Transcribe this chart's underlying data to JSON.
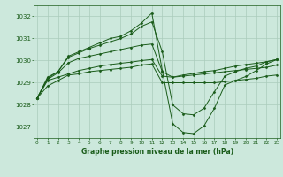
{
  "title": "Graphe pression niveau de la mer (hPa)",
  "bg_color": "#cce8dc",
  "grid_color": "#aaccbb",
  "line_color": "#1a5c1a",
  "xlim": [
    -0.3,
    23.3
  ],
  "ylim": [
    1026.5,
    1032.5
  ],
  "yticks": [
    1027,
    1028,
    1029,
    1030,
    1031,
    1032
  ],
  "xticks": [
    0,
    1,
    2,
    3,
    4,
    5,
    6,
    7,
    8,
    9,
    10,
    11,
    12,
    13,
    14,
    15,
    16,
    17,
    18,
    19,
    20,
    21,
    22,
    23
  ],
  "series": [
    [
      1028.3,
      1028.85,
      1029.1,
      1029.35,
      1029.4,
      1029.5,
      1029.55,
      1029.6,
      1029.65,
      1029.7,
      1029.8,
      1029.85,
      1029.0,
      1029.0,
      1029.0,
      1029.0,
      1029.0,
      1029.0,
      1029.05,
      1029.1,
      1029.15,
      1029.2,
      1029.3,
      1029.35
    ],
    [
      1028.3,
      1029.1,
      1029.25,
      1029.4,
      1029.55,
      1029.65,
      1029.75,
      1029.82,
      1029.88,
      1029.93,
      1030.0,
      1030.05,
      1029.3,
      1029.25,
      1029.3,
      1029.35,
      1029.4,
      1029.45,
      1029.5,
      1029.55,
      1029.6,
      1029.65,
      1029.7,
      1029.8
    ],
    [
      1028.3,
      1029.15,
      1029.45,
      1029.9,
      1030.1,
      1030.2,
      1030.3,
      1030.4,
      1030.5,
      1030.6,
      1030.7,
      1030.75,
      1029.5,
      1029.25,
      1029.35,
      1029.42,
      1029.5,
      1029.55,
      1029.65,
      1029.75,
      1029.82,
      1029.88,
      1029.95,
      1030.05
    ],
    [
      1028.3,
      1029.2,
      1029.5,
      1030.15,
      1030.35,
      1030.55,
      1030.7,
      1030.85,
      1031.0,
      1031.2,
      1031.55,
      1031.75,
      1030.4,
      1028.0,
      1027.6,
      1027.55,
      1027.85,
      1028.6,
      1029.3,
      1029.5,
      1029.65,
      1029.75,
      1029.95,
      1030.05
    ],
    [
      1028.3,
      1029.25,
      1029.5,
      1030.2,
      1030.4,
      1030.6,
      1030.8,
      1031.0,
      1031.1,
      1031.35,
      1031.7,
      1032.15,
      1029.55,
      1027.15,
      1026.75,
      1026.7,
      1027.05,
      1027.85,
      1028.9,
      1029.1,
      1029.28,
      1029.55,
      1029.85,
      1030.05
    ]
  ]
}
